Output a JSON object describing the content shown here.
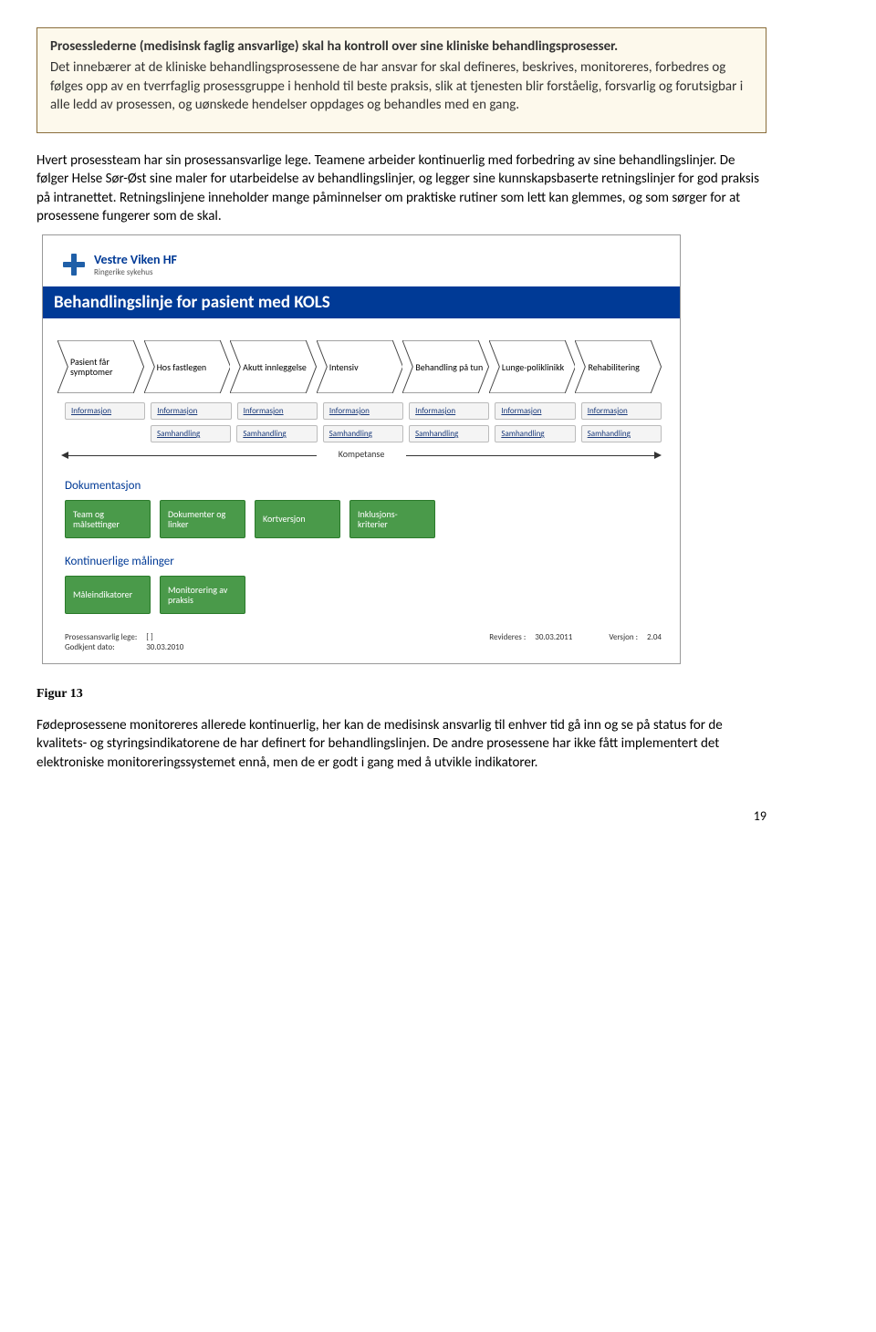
{
  "box": {
    "title": "Prosesslederne (medisinsk faglig ansvarlige) skal ha kontroll over sine kliniske behandlingsprosesser.",
    "body": "Det innebærer at de kliniske behandlingsprosessene de har ansvar for skal defineres, beskrives, monitoreres, forbedres og følges opp av en tverrfaglig prosessgruppe i henhold til beste praksis, slik at tjenesten blir forståelig, forsvarlig og forutsigbar i alle ledd av prosessen, og uønskede hendelser oppdages og behandles med en gang."
  },
  "para1": "Hvert prosessteam har sin prosessansvarlige lege. Teamene arbeider kontinuerlig med forbedring av sine behandlingslinjer. De følger Helse Sør-Øst sine maler for utarbeidelse av behandlingslinjer, og legger sine kunnskapsbaserte retningslinjer for god praksis på intranettet. Retningslinjene inneholder mange påminnelser om praktiske rutiner som lett kan glemmes, og som sørger for at prosessene fungerer som de skal.",
  "diagram": {
    "logo_org": "Vestre Viken HF",
    "logo_sub": "Ringerike sykehus",
    "logo_color": "#1f5fa8",
    "title": "Behandlingslinje for pasient med KOLS",
    "title_bg": "#003a96",
    "chevron_fill": "#ffffff",
    "chevron_stroke": "#444444",
    "chevrons": [
      "Pasient får symptomer",
      "Hos fastlegen",
      "Akutt innleggelse",
      "Intensiv",
      "Behandling på tun",
      "Lunge-poliklinikk",
      "Rehabilitering"
    ],
    "row1_label": "Informasjon",
    "row1": [
      "Informasjon",
      "Informasjon",
      "Informasjon",
      "Informasjon",
      "Informasjon",
      "Informasjon",
      "Informasjon"
    ],
    "row2_label": "Samhandling",
    "row2": [
      "Samhandling",
      "Samhandling",
      "Samhandling",
      "Samhandling",
      "Samhandling",
      "Samhandling"
    ],
    "kompetanse": "Kompetanse",
    "section1": "Dokumentasjon",
    "boxes1": [
      "Team og målsettinger",
      "Dokumenter og  linker",
      "Kortversjon",
      "Inklusjons-kriterier"
    ],
    "section2": "Kontinuerlige målinger",
    "boxes2": [
      "Måleindikatorer",
      "Monitorering av praksis"
    ],
    "box_bg": "#4a9a4a",
    "meta": {
      "ansvarlig_l": "Prosessansvarlig lege:",
      "ansvarlig_v": "[ ]",
      "godkjent_l": "Godkjent dato:",
      "godkjent_v": "30.03.2010",
      "revideres_l": "Revideres :",
      "revideres_v": "30.03.2011",
      "versjon_l": "Versjon :",
      "versjon_v": "2.04"
    }
  },
  "figlabel": "Figur 13",
  "para2": "Fødeprosessene monitoreres allerede kontinuerlig, her kan de medisinsk ansvarlig til enhver tid gå inn og se på status for de kvalitets- og styringsindikatorene de har definert for behandlingslinjen. De andre prosessene har ikke fått implementert det elektroniske monitoreringssystemet ennå, men de er godt i gang med å utvikle indikatorer.",
  "page": "19"
}
